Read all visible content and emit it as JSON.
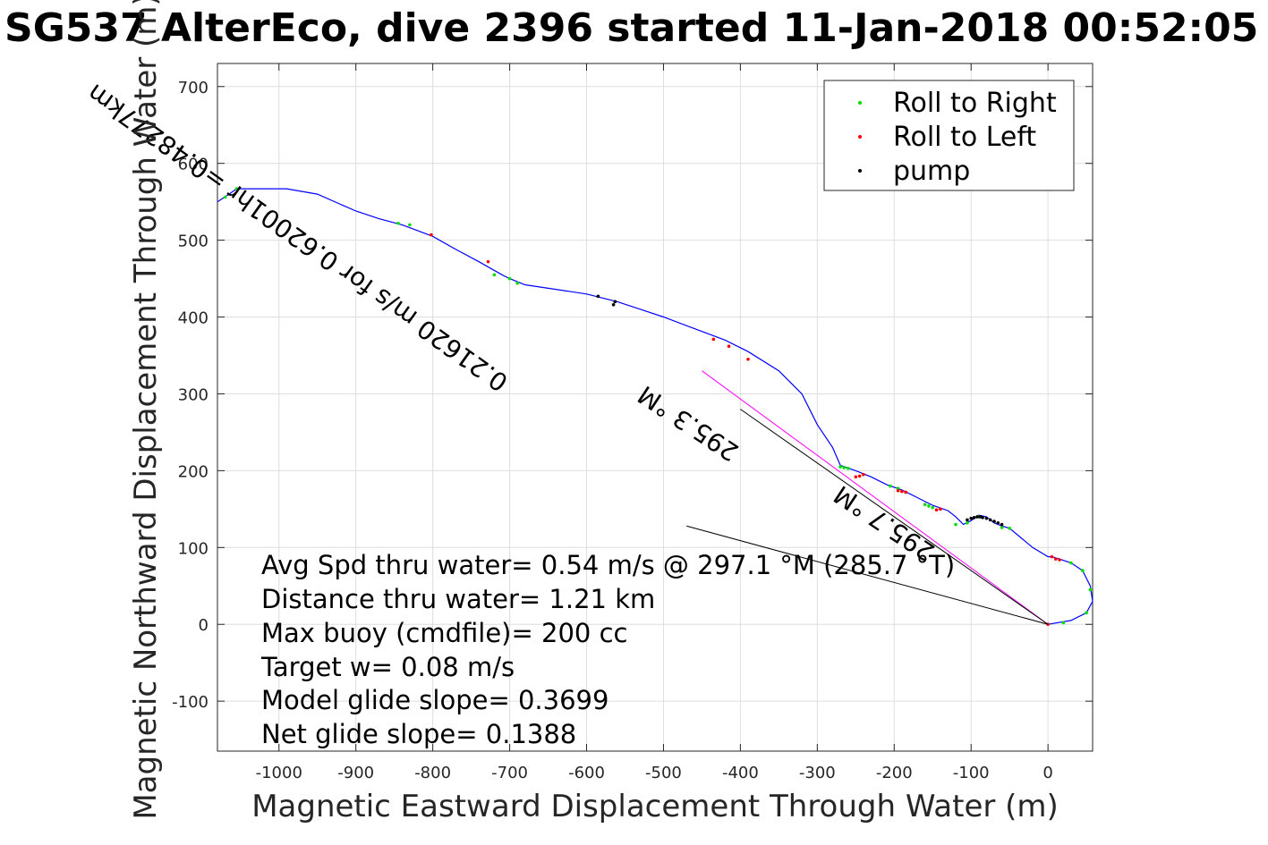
{
  "chart_data": {
    "type": "line",
    "title": "SG537 AlterEco, dive 2396 started 11-Jan-2018 00:52:05",
    "xlabel": "Magnetic Eastward Displacement Through Water (m)",
    "ylabel": "Magnetic Northward Displacement Through Water (m)",
    "xlim": [
      -1080,
      58
    ],
    "ylim": [
      -165,
      730
    ],
    "x_ticks": [
      -1000,
      -900,
      -800,
      -700,
      -600,
      -500,
      -400,
      -300,
      -200,
      -100,
      0
    ],
    "y_ticks": [
      -100,
      0,
      100,
      200,
      300,
      400,
      500,
      600,
      700
    ],
    "grid": true,
    "legend_position": "top-right",
    "legend": [
      {
        "label": "Roll to Right",
        "color": "#00e000"
      },
      {
        "label": "Roll to Left",
        "color": "#ff0000"
      },
      {
        "label": "pump",
        "color": "#000000"
      }
    ],
    "track": {
      "color": "#0000ff",
      "x": [
        0,
        30,
        50,
        58,
        55,
        45,
        30,
        15,
        5,
        0,
        -20,
        -50,
        -60,
        -70,
        -80,
        -90,
        -100,
        -110,
        -120,
        -130,
        -150,
        -170,
        -190,
        -210,
        -230,
        -250,
        -270,
        -280,
        -300,
        -320,
        -350,
        -390,
        -420,
        -460,
        -500,
        -530,
        -545,
        -560,
        -600,
        -640,
        -680,
        -700,
        -710,
        -740,
        -770,
        -800,
        -840,
        -870,
        -900,
        -950,
        -990,
        -1055,
        -1065,
        -1080
      ],
      "y": [
        0,
        5,
        15,
        30,
        50,
        70,
        80,
        85,
        88,
        88,
        100,
        125,
        128,
        132,
        140,
        142,
        135,
        130,
        140,
        148,
        155,
        165,
        175,
        182,
        192,
        200,
        207,
        230,
        260,
        300,
        330,
        355,
        370,
        385,
        400,
        410,
        415,
        420,
        430,
        436,
        442,
        450,
        455,
        472,
        488,
        505,
        520,
        528,
        538,
        560,
        567,
        567,
        560,
        550
      ]
    },
    "roll_right_points": {
      "color": "#00e000",
      "x": [
        50,
        55,
        45,
        30,
        20,
        -50,
        -60,
        -90,
        -105,
        -120,
        -150,
        -155,
        -160,
        -195,
        -205,
        -260,
        -265,
        -270,
        -690,
        -700,
        -720,
        -830,
        -845,
        -1055,
        -1070
      ],
      "y": [
        15,
        45,
        70,
        80,
        2,
        125,
        126,
        140,
        132,
        130,
        152,
        154,
        156,
        177,
        180,
        203,
        204,
        205,
        444,
        450,
        455,
        520,
        522,
        567,
        556
      ]
    },
    "roll_left_points": {
      "color": "#ff0000",
      "x": [
        5,
        10,
        15,
        0,
        -140,
        -145,
        -185,
        -190,
        -195,
        -240,
        -245,
        -250,
        -390,
        -415,
        -435,
        -728,
        -802
      ],
      "y": [
        88,
        85,
        84,
        0,
        150,
        149,
        172,
        173,
        174,
        195,
        193,
        192,
        345,
        362,
        371,
        472,
        507
      ],
      "color_hex": "#ff0000"
    },
    "pump_points": {
      "color": "#000000",
      "x": [
        -60,
        -65,
        -70,
        -75,
        -80,
        -85,
        -88,
        -92,
        -96,
        -100,
        -105,
        -563,
        -565,
        -585
      ],
      "y": [
        130,
        132,
        134,
        136,
        138,
        139,
        140,
        140,
        139,
        138,
        136,
        420,
        416,
        427
      ],
      "color_hex": "#000000"
    },
    "overlay_lines": [
      {
        "x1": 0,
        "y1": 0,
        "x2": -400,
        "y2": 280
      },
      {
        "x1": 0,
        "y1": 0,
        "x2": -470,
        "y2": 128
      }
    ],
    "current_vector": {
      "x1": 0,
      "y1": 0,
      "x2": -450,
      "y2": 330,
      "color": "#ff00ff"
    },
    "rotated_labels": [
      {
        "text": "0.21620 m/s for 0.62001hr =0.48277km",
        "x": -700,
        "y": 320,
        "angle": 35.5
      },
      {
        "text": "295.3 °M",
        "x": -400,
        "y": 230,
        "angle": 33.5
      },
      {
        "text": "295.7 °M",
        "x": -145,
        "y": 100,
        "angle": 33.5
      }
    ],
    "annotations": [
      "Avg Spd thru water=  0.54 m/s @ 297.1 °M (285.7 °T)",
      "Distance thru water=  1.21 km",
      "Max buoy (cmdfile)= 200 cc",
      "Target w= 0.08 m/s",
      "Model glide slope= 0.3699",
      "Net glide slope= 0.1388"
    ]
  }
}
